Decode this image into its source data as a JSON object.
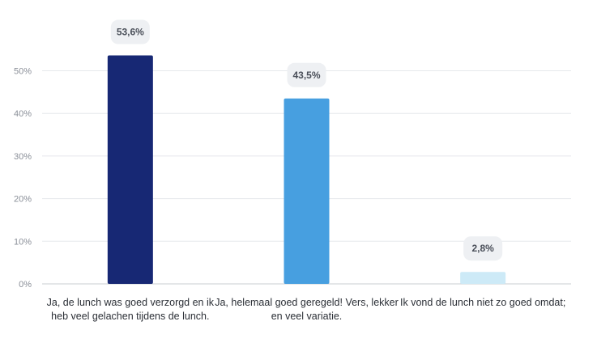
{
  "chart_data": {
    "type": "bar",
    "categories": [
      "Ja, de lunch was goed verzorgd en ik heb veel gelachen tijdens de lunch.",
      "Ja, helemaal goed geregeld! Vers, lekker en veel variatie.",
      "Ik vond de lunch niet zo goed omdat;"
    ],
    "values": [
      53.6,
      43.5,
      2.8
    ],
    "value_labels": [
      "53,6%",
      "43,5%",
      "2,8%"
    ],
    "bar_colors": [
      "#172874",
      "#479fe0",
      "#cdeaf7"
    ],
    "yticks": [
      0,
      10,
      20,
      30,
      40,
      50
    ],
    "ytick_labels": [
      "0%",
      "10%",
      "20%",
      "30%",
      "40%",
      "50%"
    ],
    "ylim": [
      0,
      55
    ],
    "grid": true,
    "title": "",
    "xlabel": "",
    "ylabel": ""
  }
}
